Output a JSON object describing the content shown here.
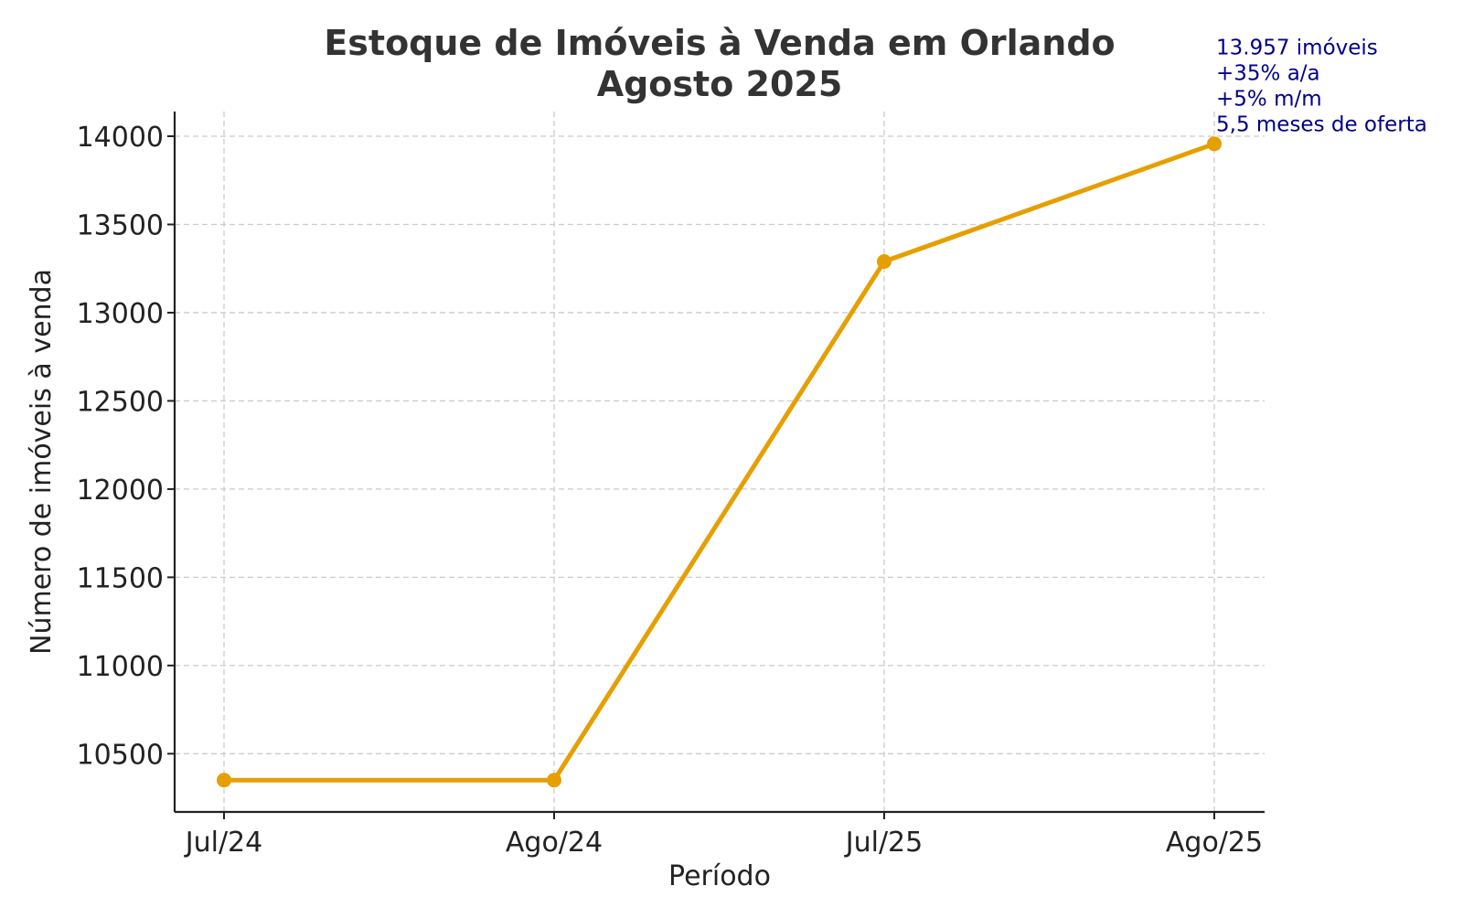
{
  "chart_data": {
    "type": "line",
    "title": "Estoque de Imóveis à Venda em Orlando",
    "subtitle": "Agosto 2025",
    "xlabel": "Período",
    "ylabel": "Número de imóveis à venda",
    "categories": [
      "Jul/24",
      "Ago/24",
      "Jul/25",
      "Ago/25"
    ],
    "series": [
      {
        "values": [
          10350,
          10350,
          13290,
          13957
        ],
        "color": "#e69f00"
      }
    ],
    "yticks": [
      10500,
      11000,
      11500,
      12000,
      12500,
      13000,
      13500,
      14000
    ],
    "ylim": [
      10170,
      14140
    ],
    "grid": true,
    "annotation": {
      "category": "Ago/25",
      "lines": [
        "13.957 imóveis",
        "+35% a/a",
        "+5% m/m",
        "5,5 meses de oferta"
      ],
      "color": "#00008b"
    }
  }
}
